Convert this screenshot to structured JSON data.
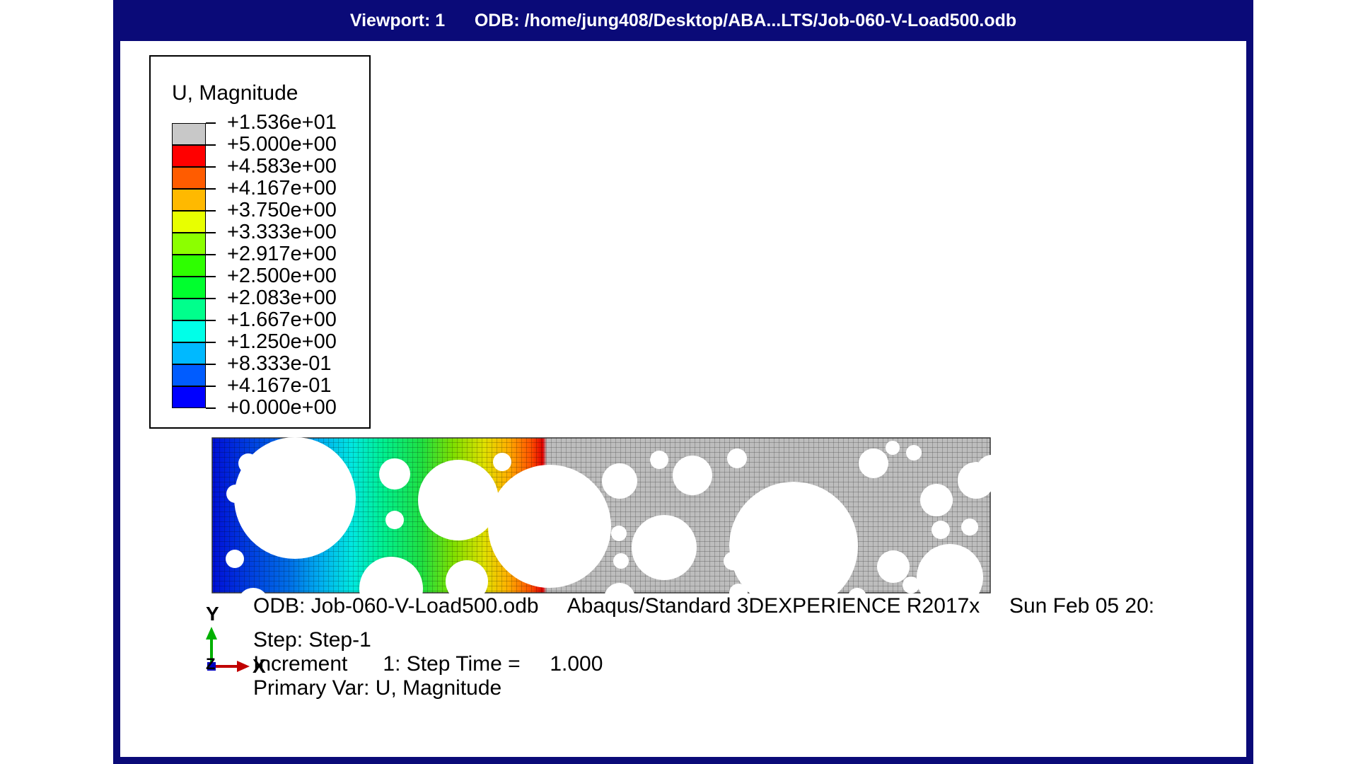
{
  "viewport": {
    "title": "Viewport: 1      ODB: /home/jung408/Desktop/ABA...LTS/Job-060-V-Load500.odb",
    "frame_color": "#0a0a78"
  },
  "legend": {
    "title": "U, Magnitude",
    "labels": [
      "+1.536e+01",
      "+5.000e+00",
      "+4.583e+00",
      "+4.167e+00",
      "+3.750e+00",
      "+3.333e+00",
      "+2.917e+00",
      "+2.500e+00",
      "+2.083e+00",
      "+1.667e+00",
      "+1.250e+00",
      "+8.333e-01",
      "+4.167e-01",
      "+0.000e+00"
    ],
    "colors": [
      "#c8c8c8",
      "#ff0000",
      "#ff5c00",
      "#ffb900",
      "#e8ff00",
      "#8cff00",
      "#2eff00",
      "#00ff2e",
      "#00ff8c",
      "#00ffe8",
      "#00b9ff",
      "#005cff",
      "#0000ff"
    ]
  },
  "info": {
    "odb_line": "ODB: Job-060-V-Load500.odb     Abaqus/Standard 3DEXPERIENCE R2017x     Sun Feb 05 20:",
    "step_line": "Step: Step-1",
    "increment_line": "Increment      1: Step Time =     1.000",
    "primary_var_line": "Primary Var: U, Magnitude"
  },
  "triad": {
    "y_label": "Y",
    "x_label": "X",
    "z_label": "Z",
    "x_color": "#c00000",
    "y_color": "#00b000",
    "z_color": "#0000c0"
  },
  "model": {
    "fill_low": "#0000ff",
    "fill_high": "#ff0000",
    "undeformed_color": "#bdbdbd"
  }
}
